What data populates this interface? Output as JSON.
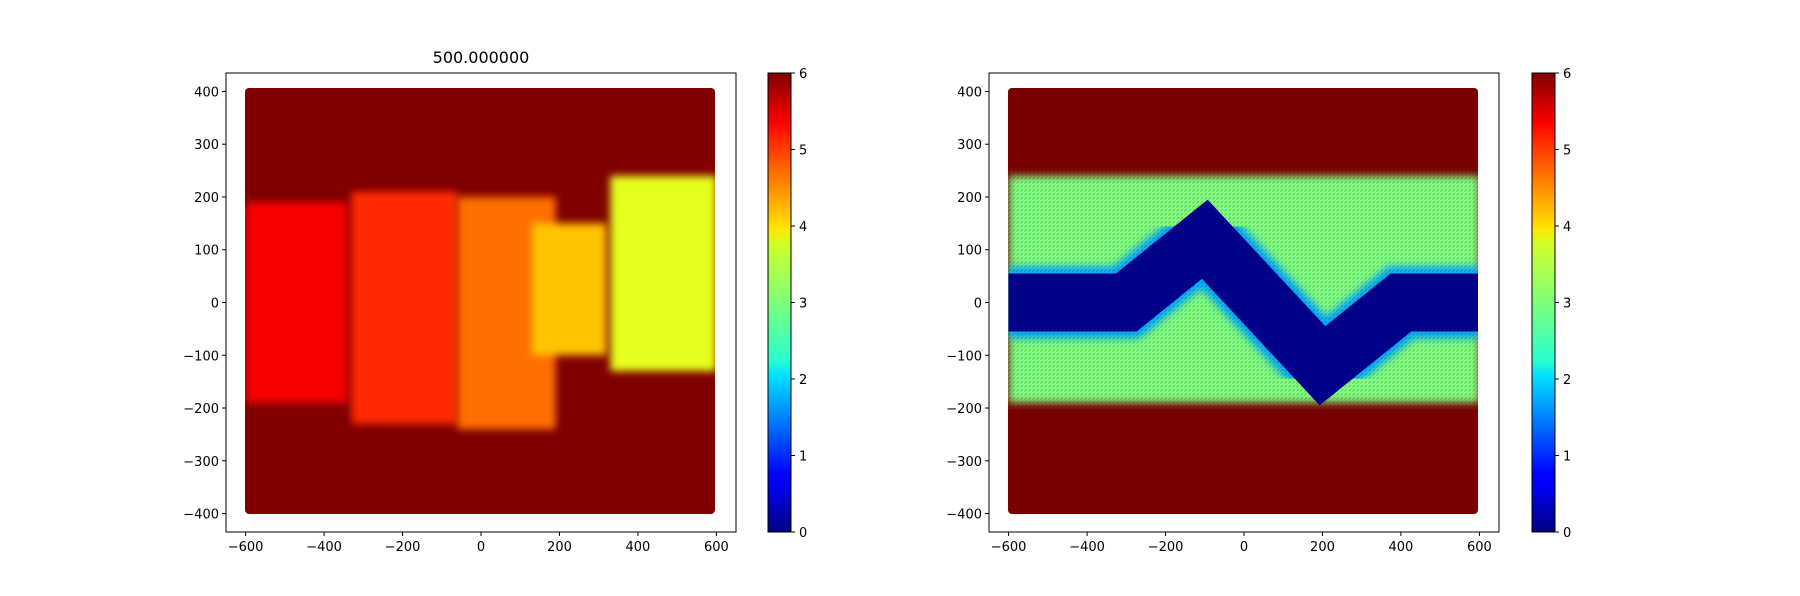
{
  "chart_data": [
    {
      "type": "heatmap",
      "title": "500.000000",
      "xlabel": "",
      "ylabel": "",
      "xlim": [
        -650,
        650
      ],
      "ylim": [
        -435,
        435
      ],
      "xticks": [
        -600,
        -400,
        -200,
        0,
        200,
        400,
        600
      ],
      "yticks": [
        -400,
        -300,
        -200,
        -100,
        0,
        100,
        200,
        300,
        400
      ],
      "colorbar": {
        "colormap": "jet",
        "range": [
          0,
          6
        ],
        "ticks": [
          0,
          1,
          2,
          3,
          4,
          5,
          6
        ]
      },
      "domain": {
        "x": [
          -600,
          600
        ],
        "y": [
          -400,
          400
        ]
      },
      "background_value": 6,
      "regions": [
        {
          "x": [
            -600,
            -340
          ],
          "y": [
            -190,
            190
          ],
          "value": 5.3
        },
        {
          "x": [
            -330,
            -60
          ],
          "y": [
            -230,
            210
          ],
          "value": 5.0
        },
        {
          "x": [
            -60,
            190
          ],
          "y": [
            -240,
            200
          ],
          "value": 4.6
        },
        {
          "x": [
            130,
            320
          ],
          "y": [
            -100,
            150
          ],
          "value": 4.1
        },
        {
          "x": [
            330,
            600
          ],
          "y": [
            -130,
            240
          ],
          "value": 3.6
        }
      ],
      "grid": false
    },
    {
      "type": "heatmap",
      "title": "",
      "xlabel": "",
      "ylabel": "",
      "xlim": [
        -650,
        650
      ],
      "ylim": [
        -435,
        435
      ],
      "xticks": [
        -600,
        -400,
        -200,
        0,
        200,
        400,
        600
      ],
      "yticks": [
        -400,
        -300,
        -200,
        -100,
        0,
        100,
        200,
        300,
        400
      ],
      "colorbar": {
        "colormap": "jet",
        "range": [
          0,
          6
        ],
        "ticks": [
          0,
          1,
          2,
          3,
          4,
          5,
          6
        ]
      },
      "domain": {
        "x": [
          -600,
          600
        ],
        "y": [
          -400,
          400
        ]
      },
      "background_value": 6,
      "overlay": "quiver",
      "regions": [
        {
          "x": [
            -600,
            600
          ],
          "y": [
            -190,
            240
          ],
          "value": 3.0
        }
      ],
      "channel": {
        "value": 0.1,
        "path": [
          [
            -600,
            0
          ],
          [
            -300,
            0
          ],
          [
            -100,
            120
          ],
          [
            200,
            -120
          ],
          [
            400,
            0
          ],
          [
            600,
            0
          ]
        ],
        "half_width": 55
      },
      "grid": false
    }
  ]
}
